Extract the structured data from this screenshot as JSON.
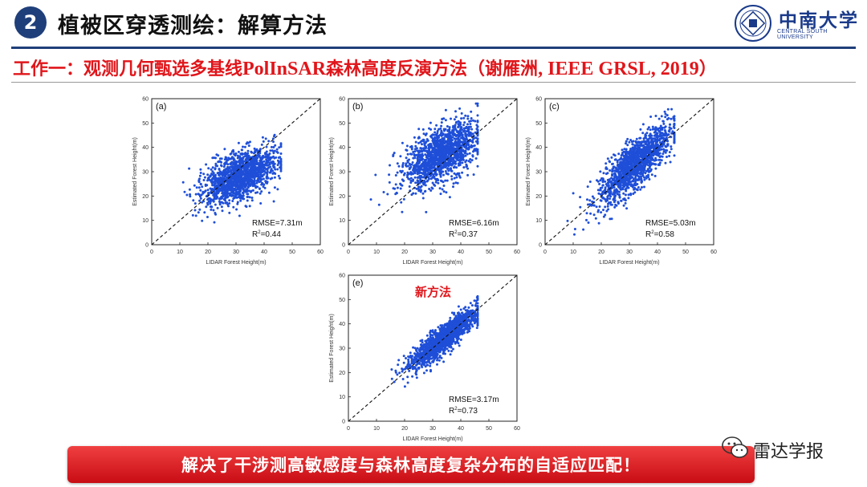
{
  "header": {
    "section_number": "2",
    "title": "植被区穿透测绘：解算方法",
    "logo_cn": "中南大学",
    "logo_en": "CENTRAL SOUTH UNIVERSITY"
  },
  "subtitle": {
    "cn_prefix": "工作一：观测几何甄选多基线",
    "latin_mid": "PolInSAR",
    "cn_mid": "森林高度反演方法（谢雁洲",
    "latin_tail": ", IEEE GRSL, 2019",
    "close": "）"
  },
  "chart_data": [
    {
      "type": "scatter",
      "panel": "(a)",
      "xlabel": "LIDAR Forest Height(m)",
      "ylabel": "Estimated Forest Height(m)",
      "xlim": [
        0,
        60
      ],
      "ylim": [
        0,
        60
      ],
      "x_ticks": [
        0,
        10,
        20,
        30,
        40,
        50,
        60
      ],
      "y_ticks": [
        0,
        10,
        20,
        30,
        40,
        50,
        60
      ],
      "reference_line": "1:1 dashed",
      "rmse": "RMSE=7.31m",
      "r2_prefix": "R",
      "r2_sup": "2",
      "r2_value": "=0.44",
      "points": {
        "x_mean": 31,
        "y_mean": 28,
        "slope": 0.45,
        "noise": 4.5
      }
    },
    {
      "type": "scatter",
      "panel": "(b)",
      "xlabel": "LIDAR Forest Height(m)",
      "ylabel": "Estimated Forest Height(m)",
      "xlim": [
        0,
        60
      ],
      "ylim": [
        0,
        60
      ],
      "x_ticks": [
        0,
        10,
        20,
        30,
        40,
        50,
        60
      ],
      "y_ticks": [
        0,
        10,
        20,
        30,
        40,
        50,
        60
      ],
      "reference_line": "1:1 dashed",
      "rmse": "RMSE=6.16m",
      "r2_prefix": "R",
      "r2_sup": "2",
      "r2_value": "=0.37",
      "points": {
        "x_mean": 33,
        "y_mean": 37,
        "slope": 0.55,
        "noise": 5.5
      }
    },
    {
      "type": "scatter",
      "panel": "(c)",
      "xlabel": "LIDAR Forest Height(m)",
      "ylabel": "Estimated Forest Height(m)",
      "xlim": [
        0,
        60
      ],
      "ylim": [
        0,
        60
      ],
      "x_ticks": [
        0,
        10,
        20,
        30,
        40,
        50,
        60
      ],
      "y_ticks": [
        0,
        10,
        20,
        30,
        40,
        50,
        60
      ],
      "reference_line": "1:1 dashed",
      "rmse": "RMSE=5.03m",
      "r2_prefix": "R",
      "r2_sup": "2",
      "r2_value": "=0.58",
      "points": {
        "x_mean": 32,
        "y_mean": 33,
        "slope": 1.0,
        "noise": 4.8
      }
    },
    {
      "type": "scatter",
      "panel": "(e)",
      "xlabel": "LIDAR Forest Height(m)",
      "ylabel": "Estimated Forest Height(m)",
      "xlim": [
        0,
        60
      ],
      "ylim": [
        0,
        60
      ],
      "x_ticks": [
        0,
        10,
        20,
        30,
        40,
        50,
        60
      ],
      "y_ticks": [
        0,
        10,
        20,
        30,
        40,
        50,
        60
      ],
      "reference_line": "1:1 dashed",
      "rmse": "RMSE=3.17m",
      "r2_prefix": "R",
      "r2_sup": "2",
      "r2_value": "=0.73",
      "annotation": "新方法",
      "points": {
        "x_mean": 34,
        "y_mean": 34,
        "slope": 0.9,
        "noise": 2.8
      }
    }
  ],
  "banner": {
    "text": "解决了干涉测高敏感度与森林高度复杂分布的自适应匹配！"
  },
  "watermark": {
    "text": "雷达学报",
    "icon": "wechat-icon"
  },
  "colors": {
    "accent_red": "#e0161b",
    "navy": "#1f3f7a",
    "point_blue": "#1f4fd8"
  }
}
